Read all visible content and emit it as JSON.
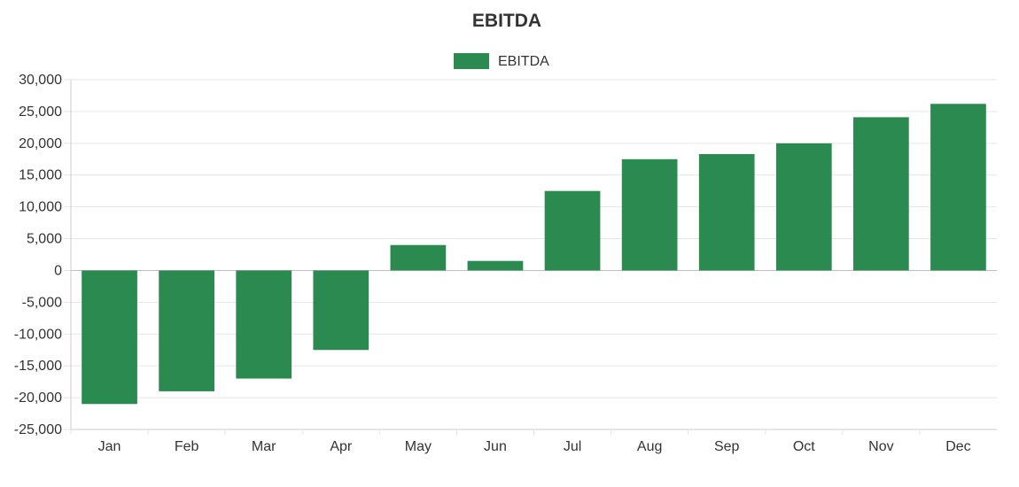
{
  "chart_data": {
    "type": "bar",
    "title": "EBITDA",
    "categories": [
      "Jan",
      "Feb",
      "Mar",
      "Apr",
      "May",
      "Jun",
      "Jul",
      "Aug",
      "Sep",
      "Oct",
      "Nov",
      "Dec"
    ],
    "series": [
      {
        "name": "EBITDA",
        "color": "#2b8a4f",
        "values": [
          -21000,
          -19000,
          -17000,
          -12500,
          4000,
          1500,
          12500,
          17500,
          18300,
          20000,
          24100,
          26200
        ]
      }
    ],
    "ylim": [
      -25000,
      30000
    ],
    "yticks": [
      "30,000",
      "25,000",
      "20,000",
      "15,000",
      "10,000",
      "5,000",
      "0",
      "-5,000",
      "-10,000",
      "-15,000",
      "-20,000",
      "-25,000"
    ],
    "ytick_values": [
      30000,
      25000,
      20000,
      15000,
      10000,
      5000,
      0,
      -5000,
      -10000,
      -15000,
      -20000,
      -25000
    ],
    "xlabel": "",
    "ylabel": "",
    "legend_position": "top-center",
    "grid": true,
    "colors": {
      "grid": "#e6e6e6",
      "zero_line": "#bfbfbf",
      "axis": "#cccccc",
      "text": "#333333",
      "title": "#333333"
    }
  }
}
